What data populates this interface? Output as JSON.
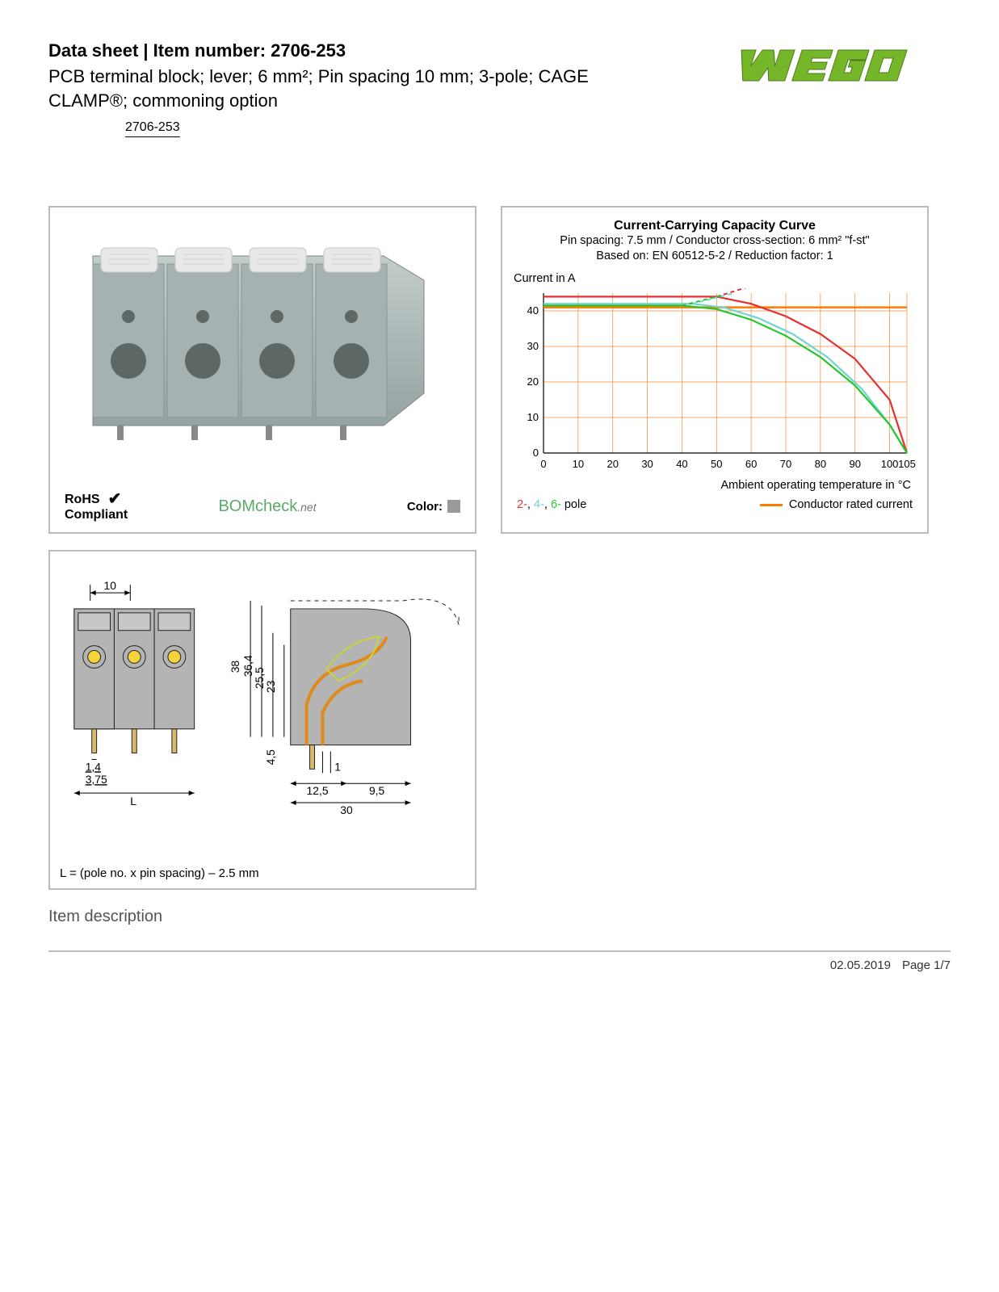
{
  "header": {
    "datasheet_label": "Data sheet",
    "separator": "  |  ",
    "item_number_label": "Item number: ",
    "item_number": "2706-253",
    "subtitle": "PCB terminal block; lever; 6 mm²; Pin spacing 10 mm; 3-pole; CAGE CLAMP®; commoning option",
    "link_text": "2706-253"
  },
  "logo": {
    "text": "WAGO",
    "fill": "#76b72a",
    "shadow": "#4a7a1b"
  },
  "product_panel": {
    "body_color": "#aeb9b8",
    "lever_color": "#e8e8e8",
    "hole_color": "#6e7776",
    "rohs_line1": "RoHS",
    "rohs_line2": "Compliant",
    "bomcheck": "BOMcheck",
    "bomcheck_suffix": ".net",
    "color_label": "Color:",
    "swatch_hex": "#999999"
  },
  "chart": {
    "title": "Current-Carrying Capacity Curve",
    "subtitle_line1": "Pin spacing: 7.5 mm / Conductor cross-section: 6 mm² \"f-st\"",
    "subtitle_line2": "Based on: EN 60512-5-2 / Reduction factor: 1",
    "ylabel": "Current in A",
    "xlabel": "Ambient operating temperature in °C",
    "xlim": [
      0,
      105
    ],
    "ylim": [
      0,
      45
    ],
    "xticks": [
      0,
      10,
      20,
      30,
      40,
      50,
      60,
      70,
      80,
      90,
      100,
      105
    ],
    "xtick_labels": [
      "0",
      "10",
      "20",
      "30",
      "40",
      "50",
      "60",
      "70",
      "80",
      "90",
      "100",
      "105"
    ],
    "yticks": [
      0,
      10,
      20,
      30,
      40
    ],
    "ytick_labels": [
      "0",
      "10",
      "20",
      "30",
      "40"
    ],
    "grid_color": "#f58a33",
    "axis_color": "#000000",
    "rated_line": {
      "y": 41,
      "color": "#ff7a00"
    },
    "series": [
      {
        "name": "2-pole",
        "color": "#e53030",
        "solid": [
          [
            0,
            44
          ],
          [
            50,
            44
          ],
          [
            60,
            42
          ],
          [
            70,
            38.5
          ],
          [
            80,
            33.5
          ],
          [
            90,
            26.5
          ],
          [
            100,
            15
          ],
          [
            105,
            0
          ]
        ],
        "dashed": [
          [
            50,
            44
          ],
          [
            60,
            47
          ]
        ]
      },
      {
        "name": "4-pole",
        "color": "#6fd6d0",
        "solid": [
          [
            0,
            42
          ],
          [
            43,
            42
          ],
          [
            52,
            41
          ],
          [
            62,
            38
          ],
          [
            72,
            33.5
          ],
          [
            82,
            27
          ],
          [
            92,
            18
          ],
          [
            100,
            8
          ],
          [
            105,
            0
          ]
        ],
        "dashed": [
          [
            43,
            42
          ],
          [
            55,
            45
          ]
        ]
      },
      {
        "name": "6-pole",
        "color": "#29c52f",
        "solid": [
          [
            0,
            41.5
          ],
          [
            40,
            41.5
          ],
          [
            50,
            40.5
          ],
          [
            60,
            37.5
          ],
          [
            70,
            33
          ],
          [
            80,
            27
          ],
          [
            90,
            19
          ],
          [
            100,
            8
          ],
          [
            105,
            0
          ]
        ],
        "dashed": [
          [
            40,
            41.5
          ],
          [
            52,
            44.5
          ]
        ]
      }
    ],
    "legend_poles": [
      {
        "label": "2-",
        "color": "#e53030"
      },
      {
        "label": "4-",
        "color": "#6fd6d0"
      },
      {
        "label": "6-",
        "color": "#29c52f"
      }
    ],
    "legend_pole_suffix": " pole",
    "legend_right": "Conductor rated current",
    "plot_bg": "#ffffff",
    "tick_fontsize": 13
  },
  "tech_drawing": {
    "dims": {
      "pin_spacing": "10",
      "pin_width": "1,4",
      "pin_pitch_offset": "3,75",
      "length_label": "L",
      "height_total": "38",
      "height_inner": "36,4",
      "height_cavity": "25,5",
      "height_contact": "23",
      "pin_depth": "4,5",
      "lead_width": "1",
      "body_depth_front": "12,5",
      "body_depth_back": "9,5",
      "body_depth_total": "30"
    },
    "formula": "L = (pole no. x pin spacing) – 2.5 mm",
    "colors": {
      "body": "#b4b4b4",
      "outline": "#222222",
      "contact": "#f5d33a",
      "spring": "#e08a1a"
    }
  },
  "section_heading": "Item description",
  "footer": {
    "date": "02.05.2019",
    "page": "Page 1/7"
  }
}
